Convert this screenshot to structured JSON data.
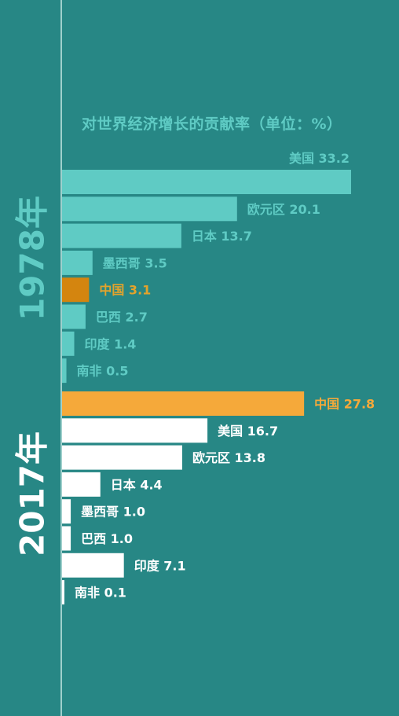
{
  "chart_data": [
    {
      "type": "bar",
      "orientation": "horizontal",
      "title": "对世界经济增长的贡献率（单位：%）",
      "group": "1978年",
      "categories": [
        "美国",
        "欧元区",
        "日本",
        "墨西哥",
        "中国",
        "巴西",
        "印度",
        "南非"
      ],
      "values": [
        33.2,
        20.1,
        13.7,
        3.5,
        3.1,
        2.7,
        1.4,
        0.5
      ],
      "highlight": "中国",
      "colors": {
        "bar": "#5fcbc4",
        "highlight": "#d4850f",
        "label": "#5fcbc4",
        "highlight_label": "#e3a32c"
      }
    },
    {
      "type": "bar",
      "orientation": "horizontal",
      "group": "2017年",
      "categories": [
        "中国",
        "美国",
        "欧元区",
        "日本",
        "墨西哥",
        "巴西",
        "印度",
        "南非"
      ],
      "values": [
        27.8,
        16.7,
        13.8,
        4.4,
        1.0,
        1.0,
        7.1,
        0.1
      ],
      "labels": [
        "中国 27.8",
        "美国 16.7",
        "欧元区 13.8",
        "日本 4.4",
        "墨西哥 1.0",
        "巴西 1.0",
        "印度  7.1",
        "南非  0.1"
      ],
      "highlight": "中国",
      "colors": {
        "bar": "#ffffff",
        "highlight": "#f5a93a",
        "label": "#ffffff",
        "highlight_label": "#f5a93a"
      }
    }
  ],
  "header": {
    "title": "对世界经济增长的贡献率（单位：%）"
  },
  "years": {
    "first": "1978年",
    "second": "2017年"
  },
  "colors": {
    "background": "#278785",
    "axis": "#9fd0cc"
  }
}
